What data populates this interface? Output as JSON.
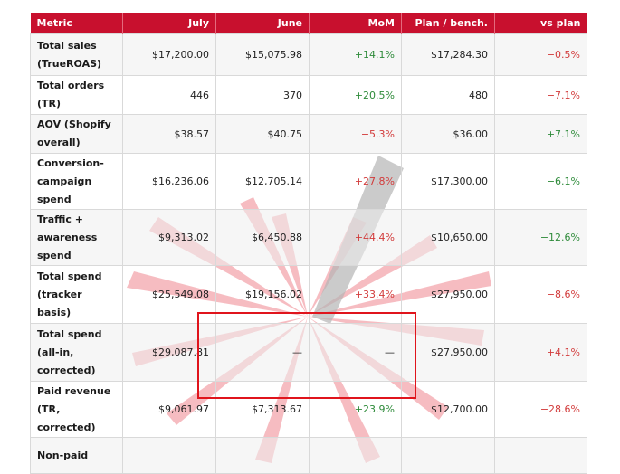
{
  "table": {
    "headers": [
      "Metric",
      "July",
      "June",
      "MoM",
      "Plan / bench.",
      "vs plan"
    ],
    "rows": [
      {
        "metric": "Total sales (TrueROAS)",
        "july": "$17,200.00",
        "june": "$15,075.98",
        "mom": "+14.1%",
        "plan": "$17,284.30",
        "vs_plan": "−0.5%"
      },
      {
        "metric": "Total orders (TR)",
        "july": "446",
        "june": "370",
        "mom": "+20.5%",
        "plan": "480",
        "vs_plan": "−7.1%"
      },
      {
        "metric": "AOV (Shopify overall)",
        "july": "$38.57",
        "june": "$40.75",
        "mom": "−5.3%",
        "plan": "$36.00",
        "vs_plan": "+7.1%"
      },
      {
        "metric": "Conversion-campaign spend",
        "july": "$16,236.06",
        "june": "$12,705.14",
        "mom": "+27.8%",
        "plan": "$17,300.00",
        "vs_plan": "−6.1%"
      },
      {
        "metric": "Traffic + awareness spend",
        "july": "$9,313.02",
        "june": "$6,450.88",
        "mom": "+44.4%",
        "plan": "$10,650.00",
        "vs_plan": "−12.6%"
      },
      {
        "metric": "Total spend (tracker basis)",
        "july": "$25,549.08",
        "june": "$19,156.02",
        "mom": "+33.4%",
        "plan": "$27,950.00",
        "vs_plan": "−8.6%"
      },
      {
        "metric": "Total spend (all-in, corrected)",
        "july": "$29,087.81",
        "june": "—",
        "mom": "—",
        "plan": "$27,950.00",
        "vs_plan": "+4.1%"
      },
      {
        "metric": "Paid revenue (TR, corrected)",
        "july": "$9,061.97",
        "june": "$7,313.67",
        "mom": "+23.9%",
        "plan": "$12,700.00",
        "vs_plan": "−28.6%"
      },
      {
        "metric": "Non-paid",
        "july": "",
        "june": "",
        "mom": "",
        "plan": "",
        "vs_plan": ""
      }
    ]
  },
  "colors": {
    "header_bg": "#c8102e",
    "positive": "#2e8b3a",
    "negative": "#d23b3b",
    "highlight_border": "#e0141c"
  }
}
